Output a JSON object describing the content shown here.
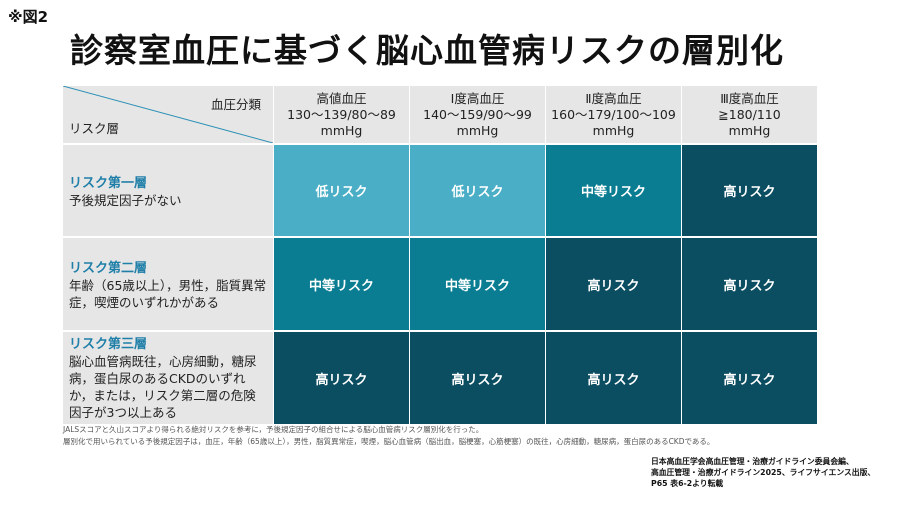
{
  "figure_label": "※図2",
  "title": "診察室血圧に基づく脳心血管病リスクの層別化",
  "header": {
    "corner_top": "血圧分類",
    "corner_bottom": "リスク層",
    "columns": [
      {
        "line1": "高値血圧",
        "line2": "130〜139/80〜89",
        "line3": "mmHg"
      },
      {
        "line1": "Ⅰ度高血圧",
        "line2": "140〜159/90〜99",
        "line3": "mmHg"
      },
      {
        "line1": "Ⅱ度高血圧",
        "line2": "160〜179/100〜109",
        "line3": "mmHg"
      },
      {
        "line1": "Ⅲ度高血圧",
        "line2": "≧180/110",
        "line3": "mmHg"
      }
    ]
  },
  "rows": [
    {
      "name": "リスク第一層",
      "desc": "予後規定因子がない",
      "cells": [
        "低リスク",
        "低リスク",
        "中等リスク",
        "高リスク"
      ]
    },
    {
      "name": "リスク第二層",
      "desc": "年齢（65歳以上），男性，脂質異常症，喫煙のいずれかがある",
      "cells": [
        "中等リスク",
        "中等リスク",
        "高リスク",
        "高リスク"
      ]
    },
    {
      "name": "リスク第三層",
      "desc": "脳心血管病既往，心房細動，糖尿病，蛋白尿のあるCKDのいずれか，または，リスク第二層の危険因子が3つ以上ある",
      "cells": [
        "高リスク",
        "高リスク",
        "高リスク",
        "高リスク"
      ]
    }
  ],
  "risk_colors": {
    "低リスク": "#4aaec6",
    "中等リスク": "#0a7d92",
    "高リスク": "#0b4d61"
  },
  "notes": [
    "JALSスコアと久山スコアより得られる絶対リスクを参考に，予後規定因子の組合せによる脳心血管病リスク層別化を行った。",
    "層別化で用いられている予後規定因子は，血圧，年齢（65歳以上），男性，脂質異常症，喫煙，脳心血管病（脳出血，脳梗塞，心筋梗塞）の既往，心房細動，糖尿病，蛋白尿のあるCKDである。"
  ],
  "source": [
    "日本高血圧学会高血圧管理・治療ガイドライン委員会編、",
    "高血圧管理・治療ガイドライン2025、ライフサイエンス出版、",
    "P65 表6-2より転載"
  ]
}
